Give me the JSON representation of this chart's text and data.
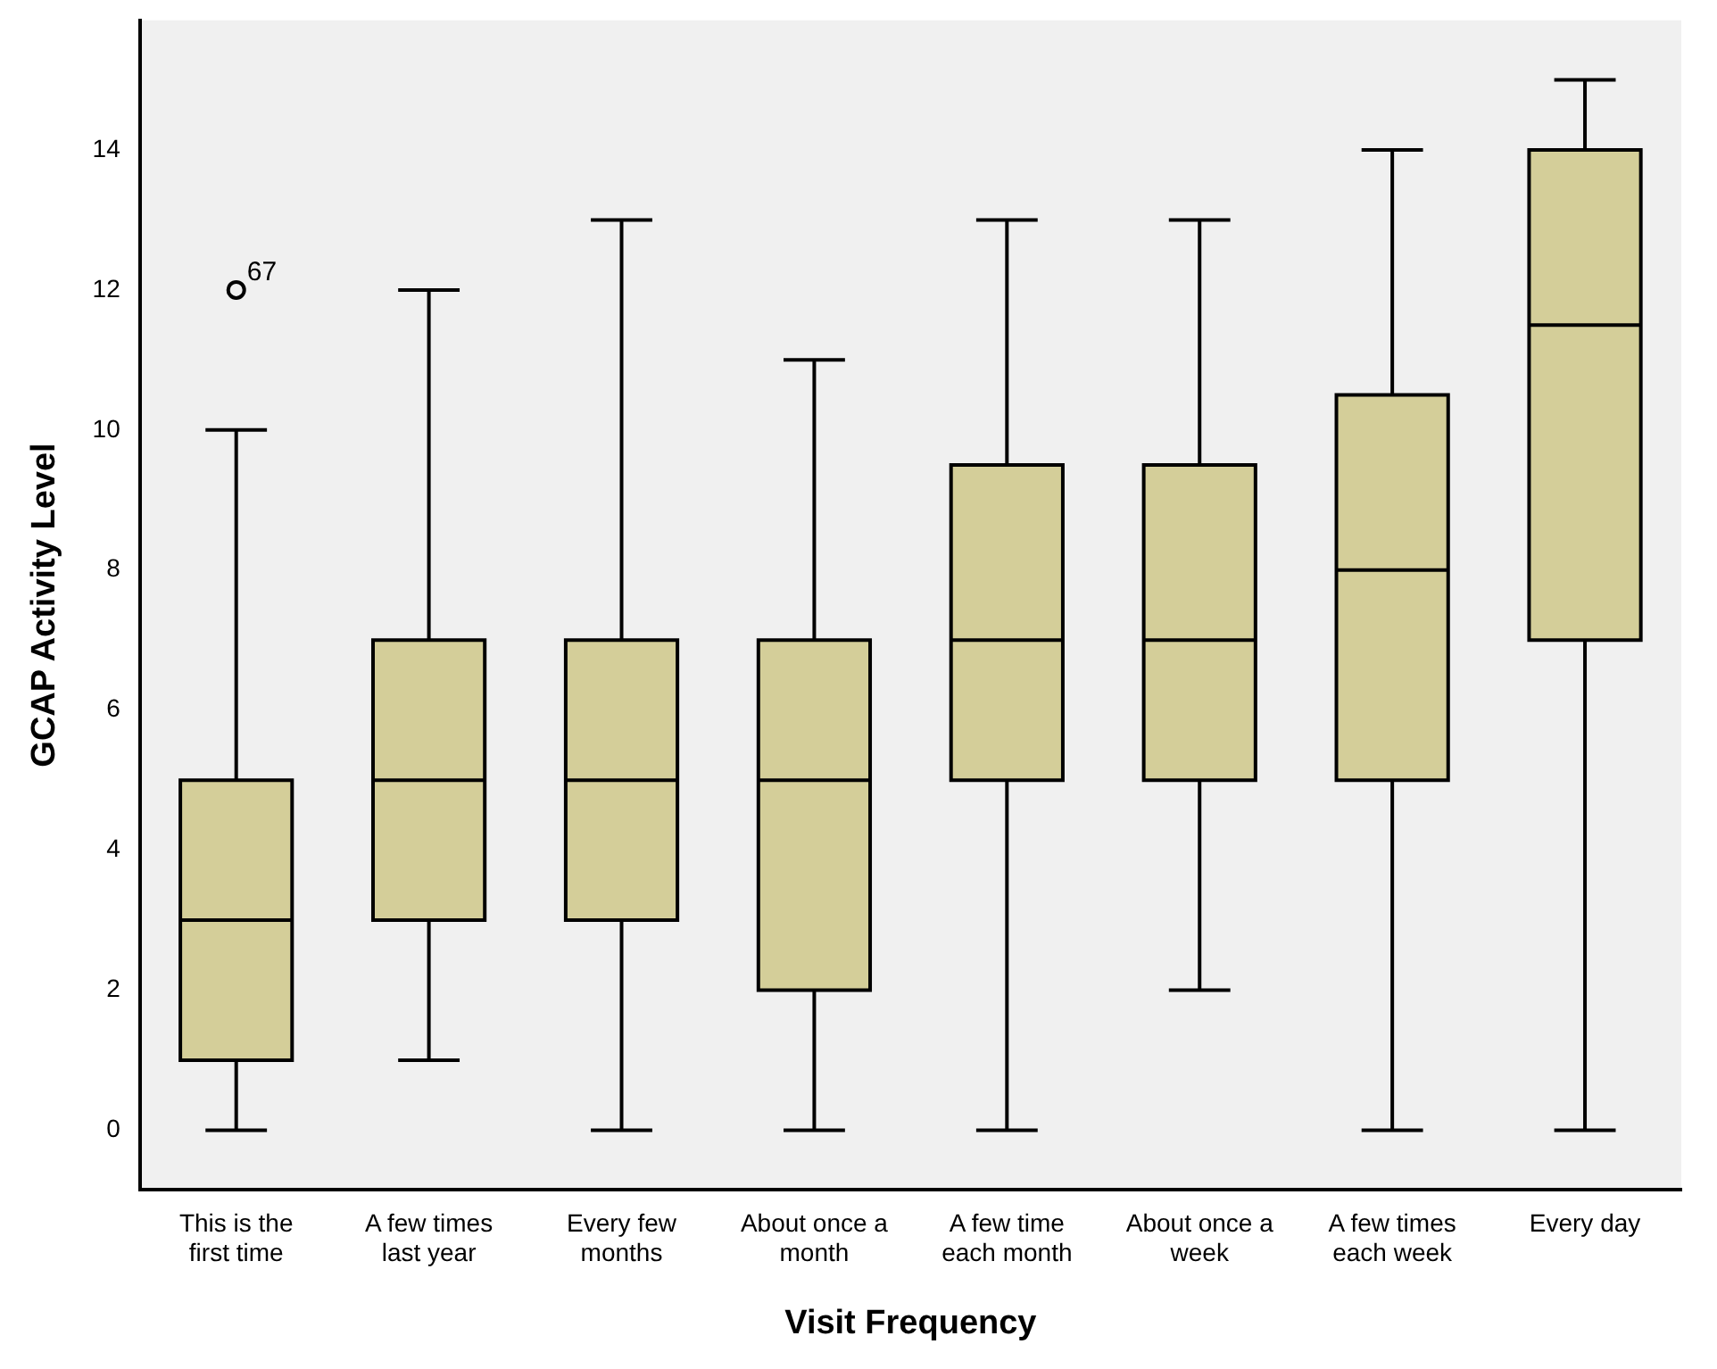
{
  "chart_data": {
    "type": "box",
    "xlabel": "Visit Frequency",
    "ylabel": "GCAP Activity Level",
    "categories": [
      "This is the first time",
      "A few times last year",
      "Every few months",
      "About once a month",
      "A few time each month",
      "About once a week",
      "A few times each week",
      "Every day"
    ],
    "color": "#d4ce99",
    "boxes": [
      {
        "low": 0,
        "q1": 1,
        "median": 3,
        "q3": 5,
        "high": 10,
        "outliers": [
          12
        ]
      },
      {
        "low": 1,
        "q1": 3,
        "median": 5,
        "q3": 7,
        "high": 12
      },
      {
        "low": 0,
        "q1": 3,
        "median": 5,
        "q3": 7,
        "high": 13
      },
      {
        "low": 0,
        "q1": 2,
        "median": 5,
        "q3": 7,
        "high": 11
      },
      {
        "low": 0,
        "q1": 5,
        "median": 7,
        "q3": 9.5,
        "high": 13
      },
      {
        "low": 2,
        "q1": 5,
        "median": 7,
        "q3": 9.5,
        "high": 13
      },
      {
        "low": 0,
        "q1": 5,
        "median": 8,
        "q3": 10.5,
        "high": 14
      },
      {
        "low": 0,
        "q1": 7,
        "median": 11.5,
        "q3": 14,
        "high": 15
      }
    ],
    "ylim": [
      -0.85,
      15.85
    ],
    "yticks": [
      0,
      2,
      4,
      6,
      8,
      10,
      12,
      14
    ],
    "annotations": [
      "67"
    ]
  }
}
